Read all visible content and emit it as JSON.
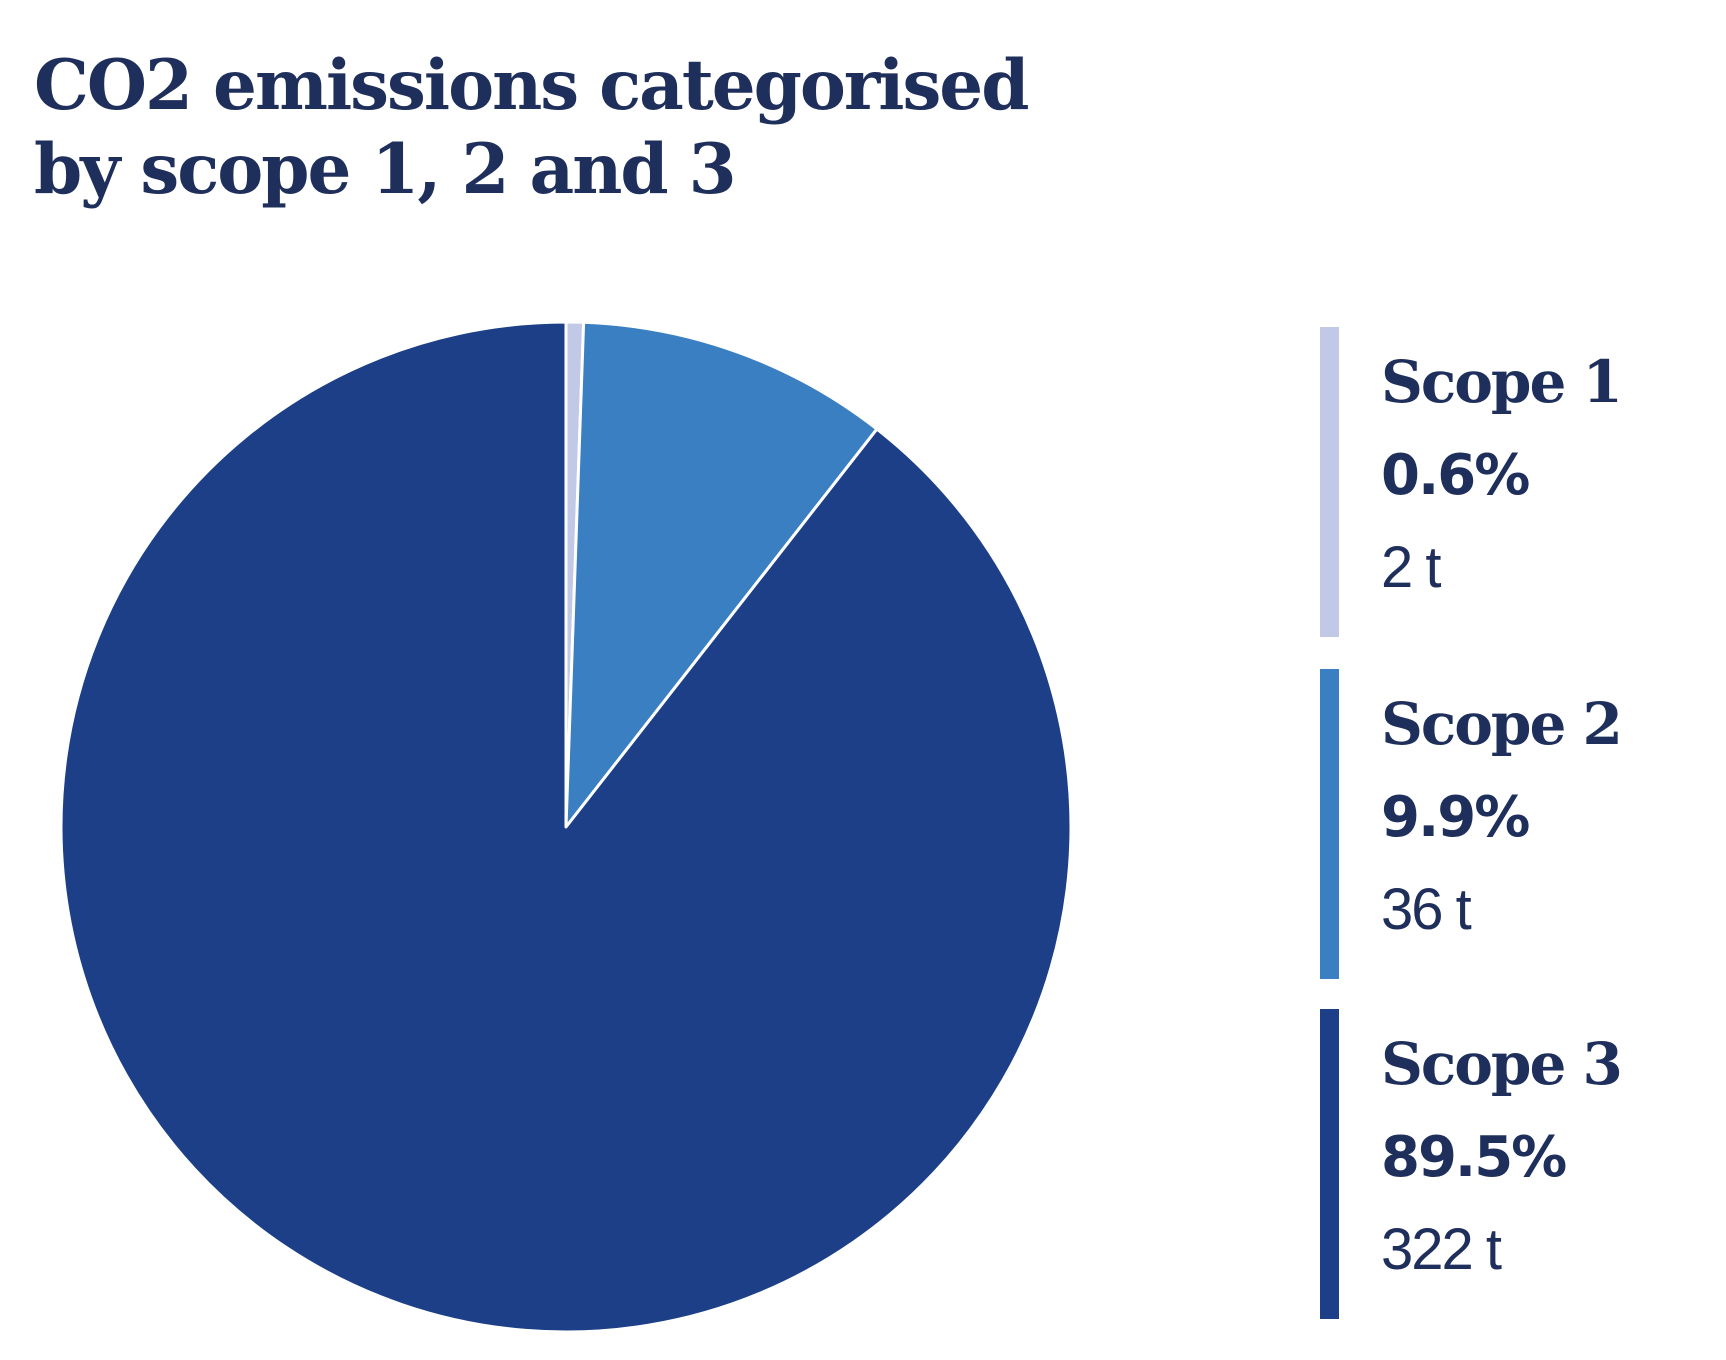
{
  "title": {
    "line1": "CO2 emissions categorised",
    "line2": "by scope 1, 2 and 3"
  },
  "chart_data": {
    "type": "pie",
    "title": "CO2 emissions categorised by scope 1, 2 and 3",
    "start_angle": "12 o'clock",
    "direction": "clockwise",
    "legend_position": "right",
    "slices": [
      {
        "name": "Scope 1",
        "percent": 0.6,
        "percent_label": "0.6%",
        "value": 2,
        "value_label": "2 t",
        "color": "#c1c9e6"
      },
      {
        "name": "Scope 2",
        "percent": 9.9,
        "percent_label": "9.9%",
        "value": 36,
        "value_label": "36 t",
        "color": "#3a7fc1"
      },
      {
        "name": "Scope 3",
        "percent": 89.5,
        "percent_label": "89.5%",
        "value": 322,
        "value_label": "322 t",
        "color": "#1c3f87"
      }
    ]
  },
  "colors": {
    "text": "#1f2f5c",
    "slice_separator": "#ffffff"
  }
}
